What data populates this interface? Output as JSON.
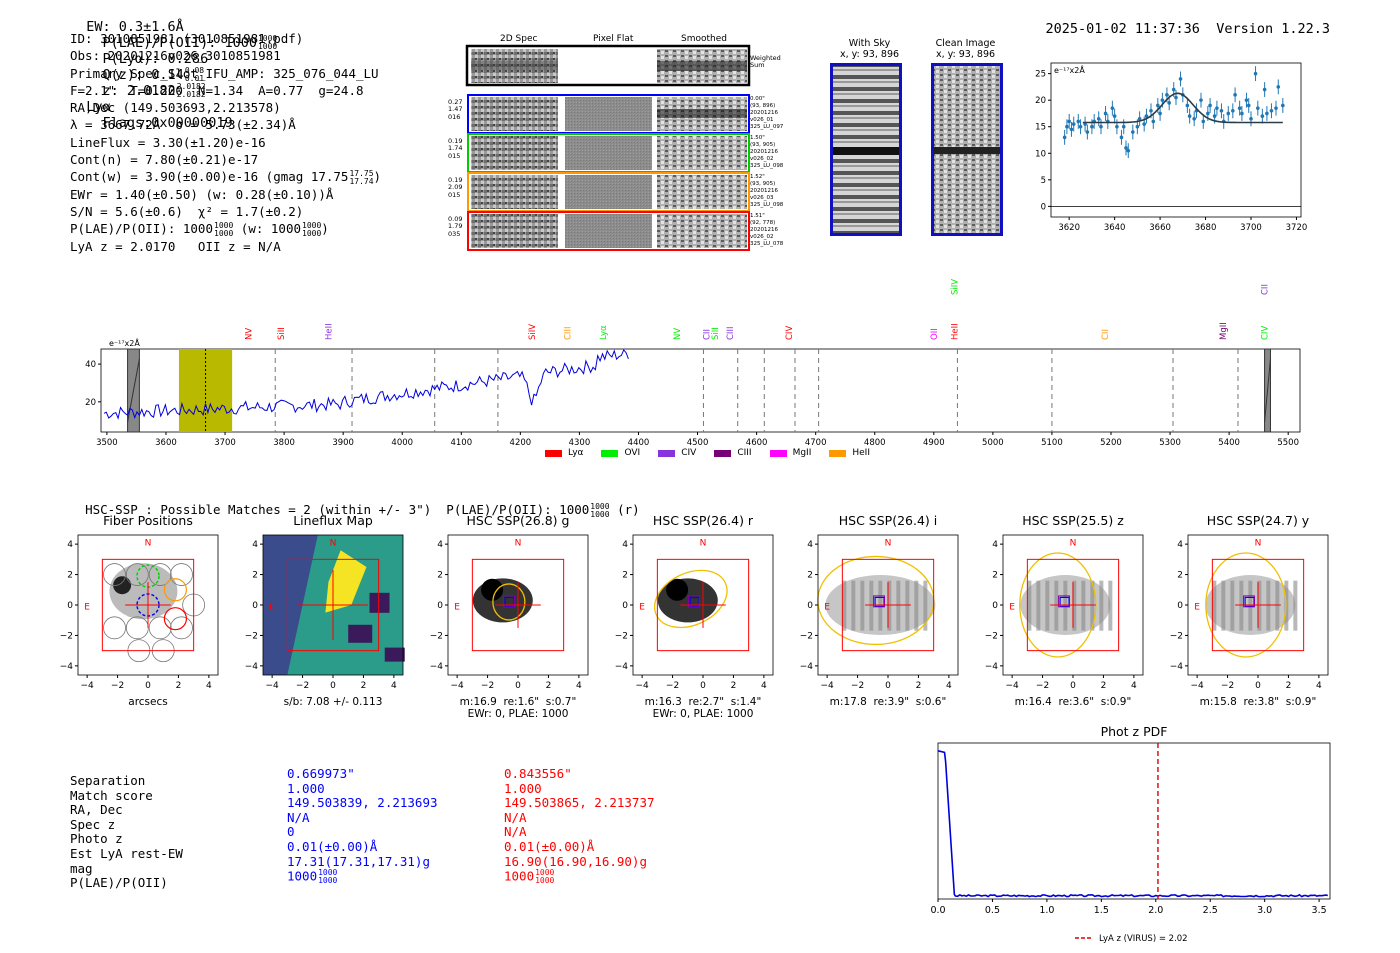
{
  "header": {
    "ew": "EW: 0.3±1.6Å",
    "plae_label": "P(LAE)/P(OII): 1000",
    "plae_frac": [
      "1000",
      "1000"
    ],
    "plya": "P(Lyα): 0.286",
    "qz_label": "Q(z): 0.14",
    "qz_frac": [
      "0.08",
      "0.01"
    ],
    "z_label": "z: 2.0182",
    "z_frac": [
      "2.0182",
      "2.0182"
    ],
    "z_line": "Lyα",
    "flags": "Flags:0x00000019",
    "timestamp": "2025-01-02 11:37:36",
    "version": "Version 1.22.3"
  },
  "info": {
    "id": "ID: 3010851981 (3010851981.pdf)",
    "obs": "Obs: 20201216v026_3010851981",
    "primary": "Primary Spec_Slot_IFU_AMP: 325_076_044_LU",
    "params": "F=2.1\"  T=0.200  N=1.34  A=0.77  g=24.8",
    "radec": "RA,Dec (149.503693,2.213578)",
    "lambda": "λ = 3667.72Å  σ = 5.73(±2.34)Å",
    "lineflux": "LineFlux = 3.30(±1.20)e-16",
    "contn": "Cont(n) = 7.80(±0.21)e-17",
    "contw": "Cont(w) = 3.90(±0.00)e-16 (gmag 17.75",
    "contw_frac": [
      "17.75",
      "17.74"
    ],
    "ewr": "EWr = 1.40(±0.50) (w: 0.28(±0.10))Å",
    "sn": "S/N = 5.6(±0.6)  χ² = 1.7(±0.2)",
    "plae": "P(LAE)/P(OII): 1000",
    "plae_frac": [
      "1000",
      "1000"
    ],
    "plae_w": "(w: 1000",
    "plae_w_frac": [
      "1000",
      "1000"
    ],
    "lya_z": "LyA z = 2.0170   OII z = N/A"
  },
  "cutouts": {
    "col_headers": [
      "2D Spec",
      "Pixel Flat",
      "Smoothed"
    ],
    "weighted_label": "Weighted Sum",
    "rows": [
      {
        "left": [
          "0.27",
          "1.47",
          "016"
        ],
        "right": [
          "0.00\"",
          "(93, 896)",
          "20201216",
          "v026_01",
          "325_LU_097"
        ],
        "color": "#0000ff"
      },
      {
        "left": [
          "0.19",
          "1.74",
          "015"
        ],
        "right": [
          "1.50\"",
          "(93, 905)",
          "20201216",
          "v026_02",
          "325_LU_098"
        ],
        "color": "#00cc00"
      },
      {
        "left": [
          "0.19",
          "2.09",
          "015"
        ],
        "right": [
          "1.52\"",
          "(93, 905)",
          "20201216",
          "v026_03",
          "325_LU_098"
        ],
        "color": "#ff9900"
      },
      {
        "left": [
          "0.09",
          "1.79",
          "035"
        ],
        "right": [
          "1.51\"",
          "(92, 778)",
          "20201216",
          "v026_02",
          "325_LU_078"
        ],
        "color": "#ff0000"
      }
    ],
    "with_sky": "With Sky",
    "with_sky_xy": "x, y: 93, 896",
    "clean": "Clean Image",
    "clean_xy": "x, y: 93, 896"
  },
  "zoom_chart": {
    "unit": "e⁻¹⁷x2Å",
    "xticks": [
      "3620",
      "3640",
      "3660",
      "3680",
      "3700",
      "3720"
    ],
    "yticks": [
      "0",
      "5",
      "10",
      "15",
      "20",
      "25"
    ]
  },
  "full_spectrum": {
    "unit": "e⁻¹⁷x2Å",
    "xticks": [
      "3500",
      "3600",
      "3700",
      "3800",
      "3900",
      "4000",
      "4100",
      "4200",
      "4300",
      "4400",
      "4500",
      "4600",
      "4700",
      "4800",
      "4900",
      "5000",
      "5100",
      "5200",
      "5300",
      "5400",
      "5500"
    ],
    "yticks": [
      "20",
      "40"
    ],
    "line_labels": [
      "NV",
      "SiII",
      "HeII",
      "SiIV",
      "CIII",
      "Lyα",
      "NV",
      "CII",
      "SiII",
      "CIII",
      "CIV",
      "OII",
      "HeII",
      "SiIV",
      "CII",
      "MgII",
      "CII",
      "CIV"
    ],
    "legend": [
      {
        "label": "Lyα",
        "color": "#ff0000"
      },
      {
        "label": "OVI",
        "color": "#00ee00"
      },
      {
        "label": "CIV",
        "color": "#8833dd"
      },
      {
        "label": "CIII",
        "color": "#770077"
      },
      {
        "label": "MgII",
        "color": "#ff00ff"
      },
      {
        "label": "HeII",
        "color": "#ff9900"
      }
    ]
  },
  "hsc_header": {
    "text": "HSC-SSP : Possible Matches = 2 (within +/- 3\")  P(LAE)/P(OII): 1000",
    "frac": [
      "1000",
      "1000"
    ],
    "suffix": "(r)"
  },
  "image_panels": [
    {
      "title": "Fiber Positions",
      "caption": "arcsecs"
    },
    {
      "title": "Lineflux Map",
      "caption": "s/b: 7.08 +/- 0.113"
    },
    {
      "title": "HSC SSP(26.8) g",
      "caption": "m:16.9  re:1.6\"  s:0.7\"\nEWr: 0, PLAE: 1000"
    },
    {
      "title": "HSC SSP(26.4) r",
      "caption": "m:16.3  re:2.7\"  s:1.4\"\nEWr: 0, PLAE: 1000"
    },
    {
      "title": "HSC SSP(26.4) i",
      "caption": "m:17.8  re:3.9\"  s:0.6\""
    },
    {
      "title": "HSC SSP(25.5) z",
      "caption": "m:16.4  re:3.6\"  s:0.9\""
    },
    {
      "title": "HSC SSP(24.7) y",
      "caption": "m:15.8  re:3.8\"  s:0.9\""
    }
  ],
  "panel_axes": {
    "ticks": [
      "-4",
      "-2",
      "0",
      "2",
      "4"
    ],
    "north": "N",
    "east": "E"
  },
  "match_table": {
    "labels": [
      "Separation",
      "Match score",
      "RA, Dec",
      "Spec z",
      "Photo z",
      "Est LyA rest-EW",
      "mag",
      "P(LAE)/P(OII)"
    ],
    "match1": [
      "0.669973\"",
      "1.000",
      "149.503839, 2.213693",
      "N/A",
      "0",
      "0.01(±0.00)Å",
      "17.31(17.31,17.31)g",
      "1000"
    ],
    "match2": [
      "0.843556\"",
      "1.000",
      "149.503865, 2.213737",
      "N/A",
      "N/A",
      "0.01(±0.00)Å",
      "16.90(16.90,16.90)g",
      "1000"
    ],
    "plae_frac": [
      "1000",
      "1000"
    ]
  },
  "pdf_chart": {
    "title": "Phot z PDF",
    "xticks": [
      "0.0",
      "0.5",
      "1.0",
      "1.5",
      "2.0",
      "2.5",
      "3.0",
      "3.5"
    ],
    "legend": "LyA z (VIRUS) = 2.02",
    "marker_z": 2.02
  }
}
